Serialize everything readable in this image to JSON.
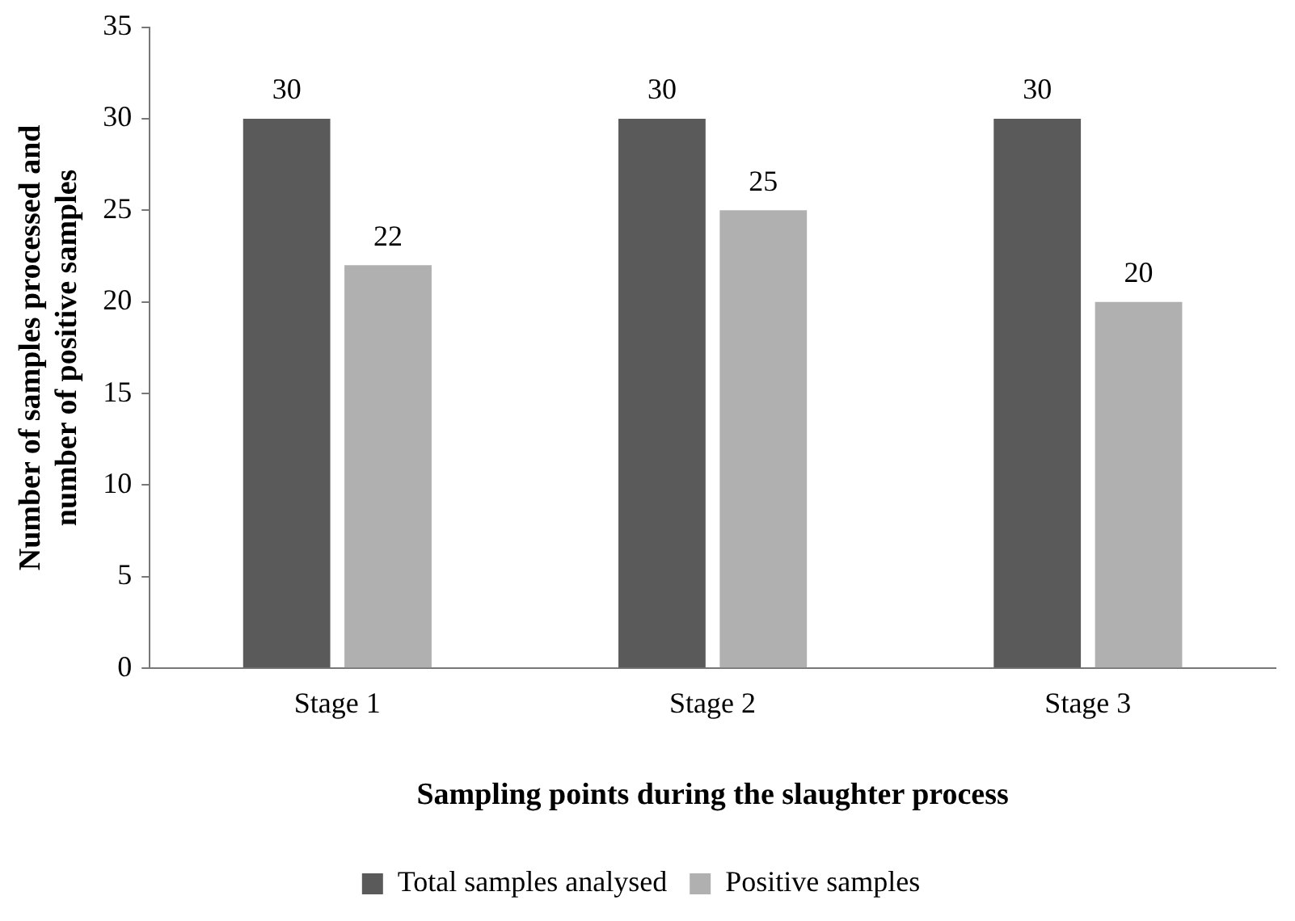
{
  "chart_data": {
    "type": "bar",
    "xlabel": "Sampling points during the slaughter process",
    "ylabel": "Number of samples processed and number of positive samples",
    "categories": [
      "Stage 1",
      "Stage 2",
      "Stage 3"
    ],
    "series": [
      {
        "name": "Total samples analysed",
        "color": "#5a5a5a",
        "values": [
          30,
          30,
          30
        ]
      },
      {
        "name": "Positive samples",
        "color": "#b0b0b0",
        "values": [
          22,
          25,
          20
        ]
      }
    ],
    "ylim": [
      0,
      35
    ],
    "yticks": [
      0,
      5,
      10,
      15,
      20,
      25,
      30,
      35
    ],
    "grid": false,
    "legend": "bottom",
    "data_labels": true
  }
}
